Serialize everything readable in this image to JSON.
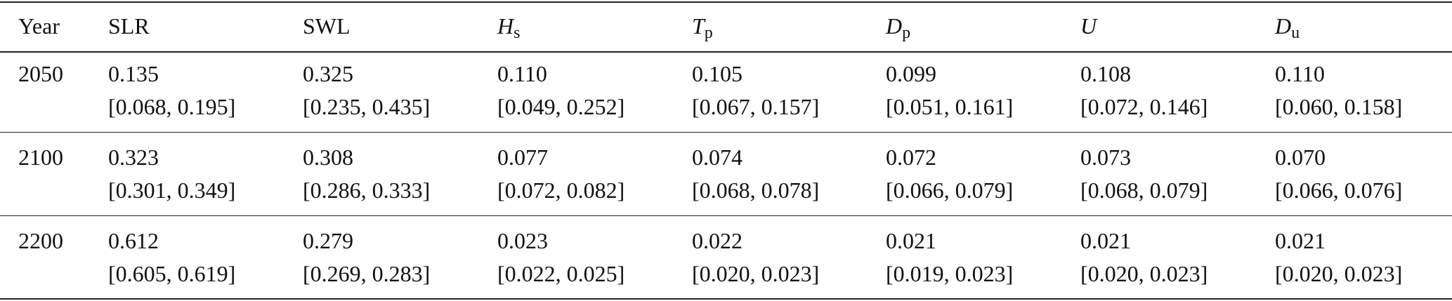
{
  "table": {
    "header": [
      "Year",
      "SLR",
      "SWL",
      {
        "main": "H",
        "sub": "s"
      },
      {
        "main": "T",
        "sub": "p"
      },
      {
        "main": "D",
        "sub": "p"
      },
      {
        "main": "U"
      },
      {
        "main": "D",
        "sub": "u"
      }
    ],
    "rows": [
      {
        "year": "2050",
        "cells": [
          {
            "value": "0.135",
            "interval": "[0.068, 0.195]"
          },
          {
            "value": "0.325",
            "interval": "[0.235, 0.435]"
          },
          {
            "value": "0.110",
            "interval": "[0.049, 0.252]"
          },
          {
            "value": "0.105",
            "interval": "[0.067, 0.157]"
          },
          {
            "value": "0.099",
            "interval": "[0.051, 0.161]"
          },
          {
            "value": "0.108",
            "interval": "[0.072, 0.146]"
          },
          {
            "value": "0.110",
            "interval": "[0.060, 0.158]"
          }
        ]
      },
      {
        "year": "2100",
        "cells": [
          {
            "value": "0.323",
            "interval": "[0.301, 0.349]"
          },
          {
            "value": "0.308",
            "interval": "[0.286, 0.333]"
          },
          {
            "value": "0.077",
            "interval": "[0.072, 0.082]"
          },
          {
            "value": "0.074",
            "interval": "[0.068, 0.078]"
          },
          {
            "value": "0.072",
            "interval": "[0.066, 0.079]"
          },
          {
            "value": "0.073",
            "interval": "[0.068, 0.079]"
          },
          {
            "value": "0.070",
            "interval": "[0.066, 0.076]"
          }
        ]
      },
      {
        "year": "2200",
        "cells": [
          {
            "value": "0.612",
            "interval": "[0.605, 0.619]"
          },
          {
            "value": "0.279",
            "interval": "[0.269, 0.283]"
          },
          {
            "value": "0.023",
            "interval": "[0.022, 0.025]"
          },
          {
            "value": "0.022",
            "interval": "[0.020, 0.023]"
          },
          {
            "value": "0.021",
            "interval": "[0.019, 0.023]"
          },
          {
            "value": "0.021",
            "interval": "[0.020, 0.023]"
          },
          {
            "value": "0.021",
            "interval": "[0.020, 0.023]"
          }
        ]
      }
    ]
  }
}
